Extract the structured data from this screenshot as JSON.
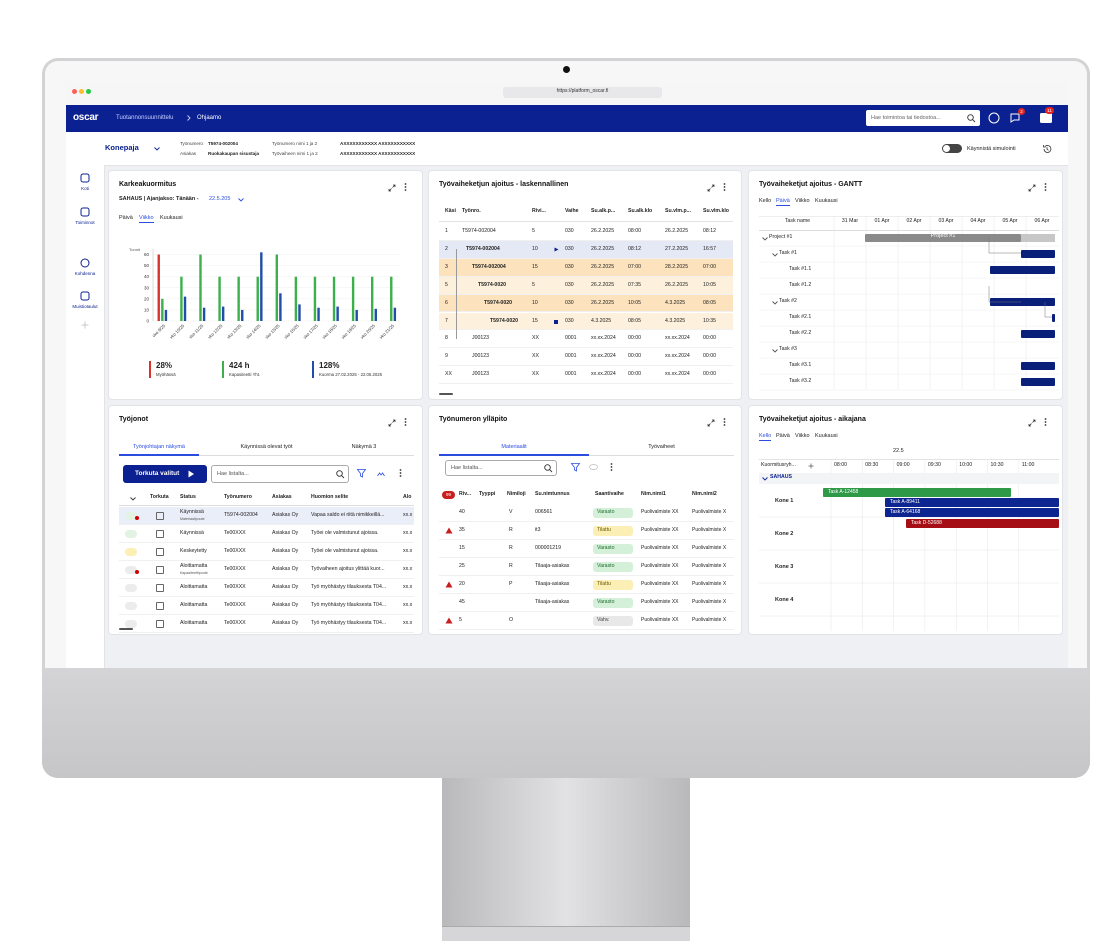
{
  "browser": {
    "url": "https://platform_oscar.fi"
  },
  "header": {
    "logo": "oscar",
    "breadcrumb": [
      "Tuotannonsuunnittelu",
      "Ohjaamo"
    ],
    "search": "Hae toimintoa tai tiedostoa...",
    "badges": [
      2,
      11
    ]
  },
  "subheader": {
    "workshop": "Konepaja",
    "fields": [
      {
        "label": "Työnumero",
        "value": "T5974-002004"
      },
      {
        "label": "Asiakas",
        "value": "Ruokakaupan sisustaja"
      },
      {
        "label": "Työnumero nimi 1 ja 2",
        "value": "AXXXXXXXXXXX AXXXXXXXXXXX"
      },
      {
        "label": "Työvaiheen nimi 1 ja 2",
        "value": "AXXXXXXXXXXX AXXXXXXXXXXX"
      }
    ],
    "simulate": "Käynnistä simulointi"
  },
  "sidebar": [
    "Koti",
    "Toiminnot",
    "Kohdenna",
    "Muistiotaulut"
  ],
  "load": {
    "title": "Karkeakuormitus",
    "subtitle": "SAHAUS | Ajanjakso: Tänään -",
    "date": "22.5.205",
    "tabs": [
      "Päivä",
      "Viikko",
      "Kuukausi"
    ],
    "chart": {
      "type": "bar",
      "y_label": "Tunnit",
      "categories": [
        "vko 9/25",
        "vko 10/25",
        "vko 11/25",
        "vko 12/25",
        "vko 13/25",
        "vko 14/25",
        "vko 15/25",
        "vko 16/25",
        "vko 17/25",
        "vko 18/25",
        "vko 19/25",
        "vko 20/25",
        "vko 21/25"
      ],
      "ylim": [
        0,
        65
      ],
      "yticks": [
        0,
        10,
        20,
        30,
        40,
        50,
        60
      ],
      "grid": true,
      "series": [
        {
          "color": "#d9342b",
          "values": [
            60,
            null,
            null,
            null,
            null,
            null,
            null,
            null,
            null,
            null,
            null,
            null,
            null
          ]
        },
        {
          "color": "#3cb04a",
          "values": [
            20,
            40,
            60,
            40,
            40,
            40,
            60,
            40,
            40,
            40,
            40,
            40,
            40
          ]
        },
        {
          "color": "#1f4fa8",
          "values": [
            10,
            22,
            12,
            13,
            10,
            62,
            25,
            15,
            12,
            13,
            10,
            11,
            12
          ]
        }
      ]
    },
    "stats": [
      {
        "value": "28%",
        "label": "Myöhässä"
      },
      {
        "value": "424 h",
        "label": "Kapasiteetti Yht."
      },
      {
        "value": "128%",
        "label": "Kuorma 27.02.2025 - 22.05.2025"
      }
    ]
  },
  "calc": {
    "title": "Työvaiheketjun ajoitus - laskennallinen",
    "columns": [
      "Käsi",
      "Työnro.",
      "Rivi...",
      "Vaihe",
      "Su.alk.p...",
      "Su.alk.klo",
      "Su.vlm.p...",
      "Su.vlm.klo"
    ],
    "rows": [
      [
        "1",
        "T5974-002004",
        "5",
        "030",
        "26.2.2025",
        "08:00",
        "26.2.2025",
        "08:12"
      ],
      [
        "2",
        "T5974-002004",
        "10",
        "030",
        "26.2.2025",
        "08:12",
        "27.2.2025",
        "16:57"
      ],
      [
        "3",
        "T5974-002004",
        "15",
        "030",
        "26.2.2025",
        "07:00",
        "28.2.2025",
        "07:00"
      ],
      [
        "5",
        "T5974-0020",
        "5",
        "030",
        "26.2.2025",
        "07:35",
        "26.2.2025",
        "10:05"
      ],
      [
        "6",
        "T5974-0020",
        "10",
        "030",
        "26.2.2025",
        "10:05",
        "4.3.2025",
        "08:05"
      ],
      [
        "7",
        "T5974-0020",
        "15",
        "030",
        "4.3.2025",
        "08:05",
        "4.3.2025",
        "10:35"
      ],
      [
        "8",
        "J00123",
        "XX",
        "0001",
        "xx.xx.2024",
        "00:00",
        "xx.xx.2024",
        "00:00"
      ],
      [
        "9",
        "J00123",
        "XX",
        "0001",
        "xx.xx.2024",
        "00:00",
        "xx.xx.2024",
        "00:00"
      ],
      [
        "XX",
        "J00123",
        "XX",
        "0001",
        "xx.xx.2024",
        "00:00",
        "xx.xx.2024",
        "00:00"
      ]
    ]
  },
  "gantt": {
    "title": "Työvaiheketjut ajoitus - GANTT",
    "tabs": [
      "Kello",
      "Päivä",
      "Viikko",
      "Kuukausi"
    ],
    "columns": [
      "Task name",
      "31 Mar",
      "01 Apr",
      "02 Apr",
      "03 Apr",
      "04 Apr",
      "05 Apr",
      "06 Apr"
    ],
    "tasks": [
      "Project #1",
      "Task #1",
      "Task #1.1",
      "Task #1.2",
      "Task #2",
      "Task #2.1",
      "Task #2.2",
      "Task #3",
      "Task #3.1",
      "Task #3.2"
    ],
    "bar_label": "Project #1"
  },
  "queue": {
    "title": "Työjonot",
    "tabs": [
      "Työnjohtajan näkymä",
      "Käynnissä olevat työt",
      "Näkymä 3"
    ],
    "button": "Torkuta valitut",
    "search": "Hae listalta...",
    "columns": [
      "Torkuta",
      "Status",
      "Työnumero",
      "Asiakas",
      "Huomion selite",
      "Alo"
    ],
    "rows": [
      {
        "status": "Käynnissä",
        "detail": "Materiaalipuute",
        "number": "T5974-002004",
        "customer": "Asiakas Oy",
        "note": "Vapaa saldo ei riitä nimikkeillä...",
        "start": "xx.x"
      },
      {
        "status": "Käynnissä",
        "number": "Te00XXX",
        "customer": "Asiakas Oy",
        "note": "Työei ole valmistunut ajoissa.",
        "start": "xx.x"
      },
      {
        "status": "Keskeytetty",
        "number": "Te00XXX",
        "customer": "Asiakas Oy",
        "note": "Työei ole valmistunut ajoissa.",
        "start": "xx.x"
      },
      {
        "status": "Aloittamatta",
        "detail": "Kapasiteettipuute",
        "number": "Te00XXX",
        "customer": "Asiakas Oy",
        "note": "Työvaiheen ajoitus ylittää kuor...",
        "start": "xx.x"
      },
      {
        "status": "Aloittamatta",
        "number": "Te00XXX",
        "customer": "Asiakas Oy",
        "note": "Työ myöhästyy tilauksesta T04...",
        "start": "xx.x"
      },
      {
        "status": "Aloittamatta",
        "number": "Te00XXX",
        "customer": "Asiakas Oy",
        "note": "Työ myöhästyy tilauksesta T04...",
        "start": "xx.x"
      },
      {
        "status": "Aloittamatta",
        "number": "Te00XXX",
        "customer": "Asiakas Oy",
        "note": "Työ myöhästyy tilauksesta T04...",
        "start": "xx.x"
      }
    ]
  },
  "maint": {
    "title": "Työnumeron ylläpito",
    "tabs": [
      "Materiaalit",
      "Työvaiheet"
    ],
    "search": "Hae listalta...",
    "badge": 99,
    "columns": [
      "Riv...",
      "Tyyppi",
      "Nimiloji",
      "Su.nimtunnus",
      "Saantivaihe",
      "Nim.nimi1",
      "Nim.nimi2"
    ],
    "rows": [
      {
        "row": "40",
        "kind": "V",
        "code": "006561",
        "status": "Varasto",
        "name1": "Puolivalmiste XX",
        "name2": "Puolivalmiste X"
      },
      {
        "row": "35",
        "kind": "R",
        "code": "it3",
        "status": "Tilattu",
        "name1": "Puolivalmiste XX",
        "name2": "Puolivalmiste X"
      },
      {
        "row": "15",
        "kind": "R",
        "code": "000001219",
        "status": "Varasto",
        "name1": "Puolivalmiste XX",
        "name2": "Puolivalmiste X"
      },
      {
        "row": "25",
        "kind": "R",
        "code": "Tilaaja-asiakas",
        "status": "Varasto",
        "name1": "Puolivalmiste XX",
        "name2": "Puolivalmiste X"
      },
      {
        "row": "20",
        "kind": "P",
        "code": "Tilaaja-asiakas",
        "status": "Tilattu",
        "name1": "Puolivalmiste XX",
        "name2": "Puolivalmiste X"
      },
      {
        "row": "45",
        "code": "Tilaaja-asiakas",
        "status": "Varasto",
        "name1": "Puolivalmiste XX",
        "name2": "Puolivalmiste X"
      },
      {
        "row": "5",
        "kind": "O",
        "status": "Vahv.",
        "name1": "Puolivalmiste XX",
        "name2": "Puolivalmiste X"
      }
    ]
  },
  "timeline": {
    "title": "Työvaiheketjut ajoitus - aikajana",
    "tabs": [
      "Kello",
      "Päivä",
      "Viikko",
      "Kuukausi"
    ],
    "date": "22.5",
    "group_column": "Kuormitusryh...",
    "times": [
      "08:00",
      "08:30",
      "09:00",
      "09:30",
      "10:00",
      "10:30",
      "11:00"
    ],
    "group": "SAHAUS",
    "machines": [
      "Kone 1",
      "Kone 2",
      "Kone 3",
      "Kone 4"
    ],
    "tasks": [
      {
        "name": "Task A-12458",
        "color": "#2e9a48"
      },
      {
        "name": "Task A-89411",
        "color": "#0d2590"
      },
      {
        "name": "Task A-64168",
        "color": "#0d2590"
      },
      {
        "name": "Task D-52688",
        "color": "#a50e14"
      }
    ]
  }
}
